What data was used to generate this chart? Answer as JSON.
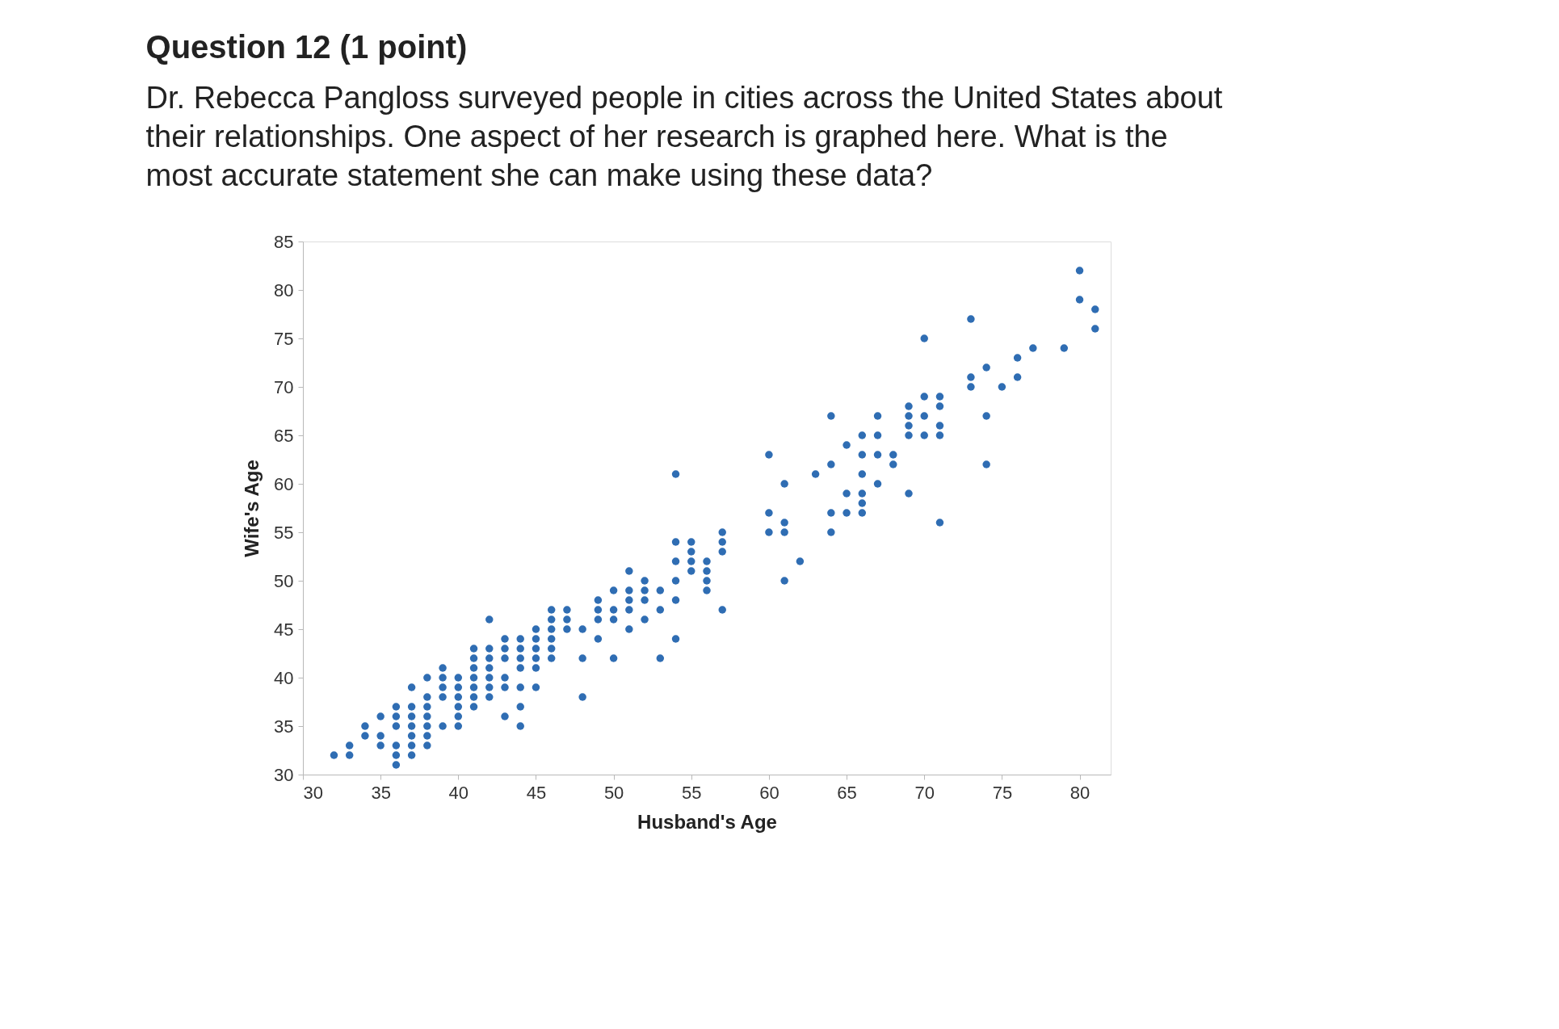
{
  "chart_data": {
    "type": "scatter",
    "title": "Question 12 (1 point)",
    "subtitle": "Dr. Rebecca Pangloss surveyed people in cities across the United States about their relationships. One aspect of her research is graphed here. What is the most accurate statement she can make using these data?",
    "xlabel": "Husband's Age",
    "ylabel": "Wife's Age",
    "xlim": [
      30,
      82
    ],
    "ylim": [
      30,
      85
    ],
    "xticks": [
      30,
      35,
      40,
      45,
      50,
      55,
      60,
      65,
      70,
      75,
      80
    ],
    "yticks": [
      30,
      35,
      40,
      45,
      50,
      55,
      60,
      65,
      70,
      75,
      80,
      85
    ],
    "grid": false,
    "marker": "circle",
    "series": [
      {
        "color": "#2f6db3",
        "x": [
          32,
          33,
          33,
          34,
          34,
          35,
          35,
          35,
          36,
          36,
          36,
          36,
          36,
          36,
          37,
          37,
          37,
          37,
          37,
          37,
          37,
          38,
          38,
          38,
          38,
          38,
          38,
          38,
          39,
          39,
          39,
          39,
          39,
          40,
          40,
          40,
          40,
          40,
          40,
          41,
          41,
          41,
          41,
          41,
          41,
          41,
          42,
          42,
          42,
          42,
          42,
          42,
          42,
          43,
          43,
          43,
          43,
          43,
          43,
          44,
          44,
          44,
          44,
          44,
          44,
          44,
          45,
          45,
          45,
          45,
          45,
          45,
          46,
          46,
          46,
          46,
          46,
          46,
          47,
          47,
          47,
          48,
          48,
          48,
          49,
          49,
          49,
          49,
          50,
          50,
          50,
          50,
          51,
          51,
          51,
          51,
          51,
          52,
          52,
          52,
          52,
          53,
          53,
          53,
          54,
          54,
          54,
          54,
          54,
          54,
          55,
          55,
          55,
          55,
          56,
          56,
          56,
          56,
          57,
          57,
          57,
          57,
          60,
          60,
          60,
          61,
          61,
          61,
          61,
          63,
          62,
          64,
          64,
          64,
          64,
          65,
          65,
          65,
          66,
          66,
          66,
          66,
          66,
          66,
          67,
          67,
          67,
          67,
          68,
          68,
          69,
          69,
          69,
          69,
          69,
          70,
          70,
          70,
          70,
          71,
          71,
          71,
          71,
          71,
          73,
          73,
          73,
          74,
          74,
          74,
          75,
          76,
          76,
          77,
          79,
          80,
          80,
          81,
          81
        ],
        "values": [
          32,
          33,
          32,
          35,
          34,
          36,
          34,
          33,
          37,
          36,
          35,
          33,
          32,
          31,
          39,
          37,
          36,
          35,
          34,
          33,
          32,
          40,
          38,
          37,
          36,
          35,
          34,
          33,
          41,
          40,
          39,
          38,
          35,
          40,
          39,
          38,
          37,
          36,
          35,
          43,
          42,
          41,
          40,
          39,
          38,
          37,
          43,
          42,
          41,
          40,
          39,
          38,
          46,
          44,
          43,
          42,
          40,
          39,
          36,
          44,
          43,
          42,
          41,
          39,
          37,
          35,
          45,
          44,
          43,
          42,
          41,
          39,
          47,
          46,
          45,
          44,
          43,
          42,
          47,
          46,
          45,
          45,
          42,
          38,
          48,
          47,
          46,
          44,
          49,
          47,
          46,
          42,
          51,
          49,
          48,
          47,
          45,
          50,
          49,
          48,
          46,
          49,
          47,
          42,
          54,
          52,
          50,
          48,
          44,
          61,
          54,
          53,
          52,
          51,
          52,
          51,
          50,
          49,
          55,
          54,
          53,
          47,
          57,
          55,
          63,
          56,
          55,
          50,
          60,
          61,
          52,
          67,
          62,
          57,
          55,
          64,
          59,
          57,
          65,
          63,
          61,
          59,
          58,
          57,
          67,
          65,
          63,
          60,
          63,
          62,
          68,
          67,
          66,
          65,
          59,
          69,
          67,
          65,
          75,
          69,
          68,
          66,
          65,
          56,
          71,
          70,
          77,
          67,
          62,
          72,
          70,
          73,
          71,
          74,
          74,
          82,
          79,
          78,
          76
        ]
      }
    ]
  }
}
